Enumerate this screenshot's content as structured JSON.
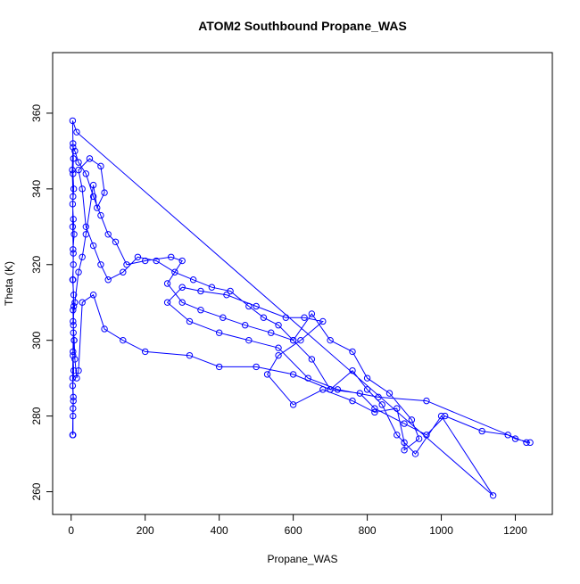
{
  "chart_data": {
    "type": "line",
    "title": "ATOM2 Southbound Propane_WAS",
    "x_label": "Propane_WAS",
    "y_label": "Theta (K)",
    "color": "#0000ff",
    "markers": "open-circle",
    "xlim": [
      -50,
      1300
    ],
    "ylim": [
      254,
      376
    ],
    "xticks": [
      0,
      200,
      400,
      600,
      800,
      1000,
      1200
    ],
    "yticks": [
      260,
      280,
      300,
      320,
      340,
      360
    ],
    "x": [
      5,
      5,
      6,
      4,
      7,
      5,
      8,
      6,
      5,
      7,
      4,
      6,
      5,
      8,
      6,
      4,
      7,
      5,
      6,
      5,
      4,
      15,
      1140,
      1000,
      930,
      880,
      840,
      800,
      760,
      700,
      650,
      600,
      560,
      520,
      480,
      430,
      380,
      330,
      280,
      230,
      180,
      140,
      100,
      80,
      60,
      40,
      30,
      20,
      50,
      80,
      90,
      70,
      60,
      40,
      30,
      20,
      10,
      5,
      8,
      10,
      15,
      20,
      30,
      60,
      90,
      140,
      200,
      320,
      400,
      500,
      600,
      700,
      780,
      820,
      900,
      960,
      1010,
      1110,
      1180,
      1200,
      1240,
      1230,
      960,
      830,
      720,
      640,
      560,
      480,
      400,
      320,
      260,
      300,
      350,
      420,
      500,
      580,
      630,
      680,
      620,
      560,
      530,
      600,
      680,
      760,
      820,
      880,
      900,
      900,
      940,
      920,
      860,
      800,
      760,
      700,
      650,
      600,
      540,
      470,
      410,
      350,
      300,
      260,
      300,
      270,
      200,
      150,
      120,
      100,
      80,
      60,
      40,
      20,
      10,
      5,
      3,
      5,
      4,
      6,
      5,
      7,
      6,
      5,
      4,
      6,
      5,
      4
    ],
    "values": [
      275,
      280,
      284,
      288,
      292,
      296,
      300,
      304,
      308,
      312,
      316,
      320,
      324,
      328,
      332,
      336,
      340,
      344,
      348,
      352,
      358,
      355,
      259,
      280,
      270,
      275,
      283,
      287,
      292,
      287,
      295,
      300,
      304,
      306,
      309,
      313,
      314,
      316,
      318,
      321,
      322,
      318,
      316,
      320,
      325,
      330,
      340,
      345,
      348,
      346,
      339,
      335,
      341,
      328,
      322,
      318,
      310,
      305,
      300,
      295,
      290,
      292,
      310,
      312,
      303,
      300,
      297,
      296,
      293,
      293,
      291,
      287,
      286,
      282,
      278,
      275,
      280,
      276,
      275,
      274,
      273,
      273,
      284,
      285,
      287,
      290,
      298,
      300,
      302,
      305,
      310,
      314,
      313,
      312,
      309,
      306,
      306,
      305,
      300,
      296,
      291,
      283,
      287,
      284,
      281,
      282,
      273,
      271,
      274,
      279,
      286,
      290,
      297,
      300,
      307,
      300,
      302,
      304,
      306,
      308,
      310,
      315,
      321,
      322,
      321,
      320,
      326,
      328,
      333,
      338,
      344,
      347,
      350,
      351,
      345,
      338,
      330,
      323,
      316,
      309,
      302,
      297,
      290,
      285,
      282,
      275
    ]
  }
}
